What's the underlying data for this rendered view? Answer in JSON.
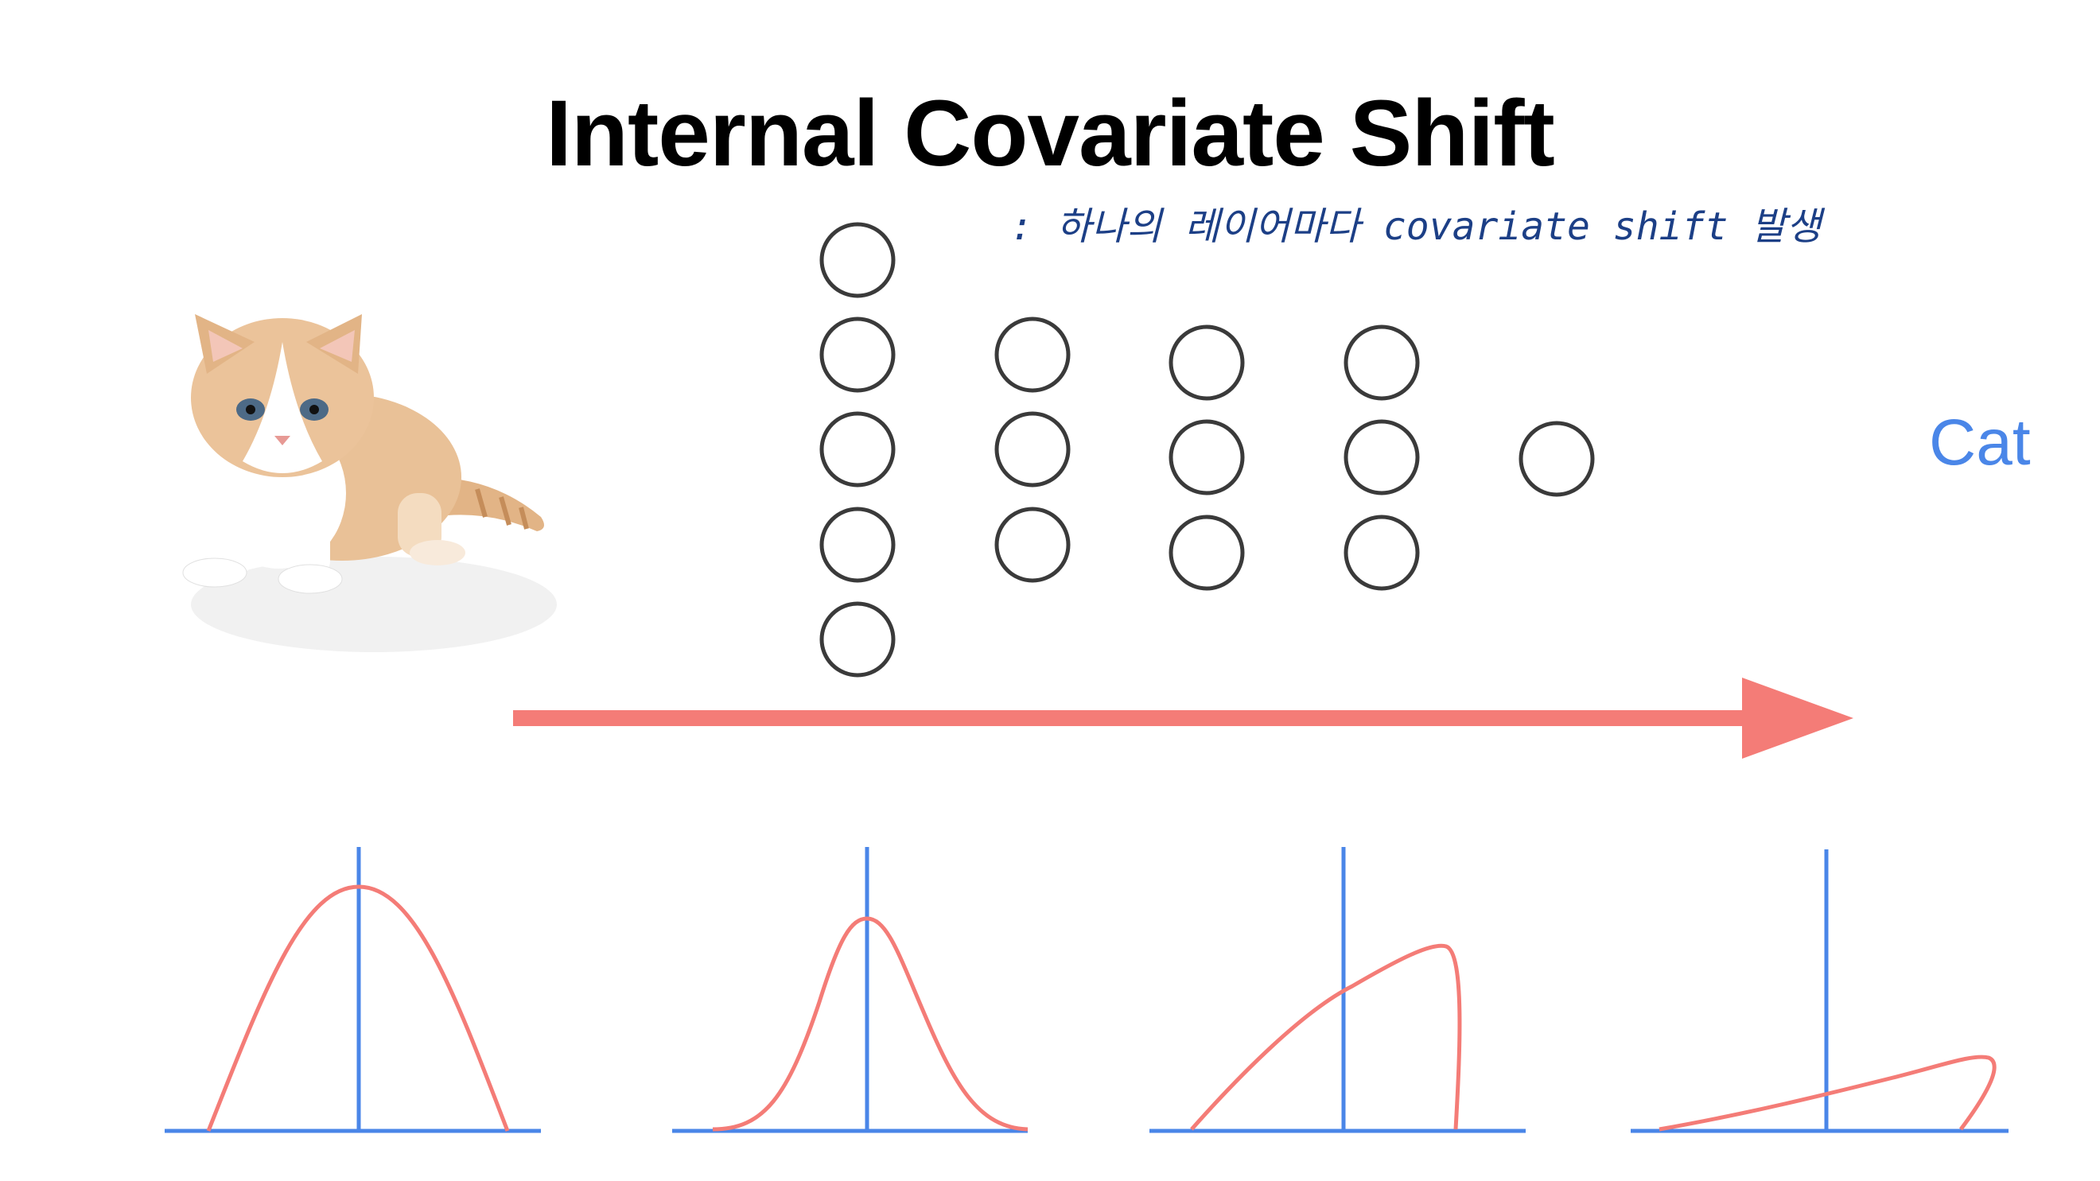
{
  "title": "Internal Covariate Shift",
  "note": ": 하나의 레이어마다 covariate shift 발생",
  "output_label": "Cat",
  "image": {
    "subject": "kitten-photo"
  },
  "network": {
    "layer_sizes": [
      5,
      3,
      3,
      3,
      1
    ]
  },
  "colors": {
    "arrow": "#f47c77",
    "axis": "#4a86e8",
    "curve": "#f47c77",
    "node_stroke": "#3a3a3a",
    "note": "#1c3f86",
    "label": "#4a86e8"
  },
  "distributions": [
    {
      "shape": "wide-symmetric"
    },
    {
      "shape": "narrow-symmetric"
    },
    {
      "shape": "right-skewed-tall"
    },
    {
      "shape": "right-skewed-flat"
    }
  ]
}
